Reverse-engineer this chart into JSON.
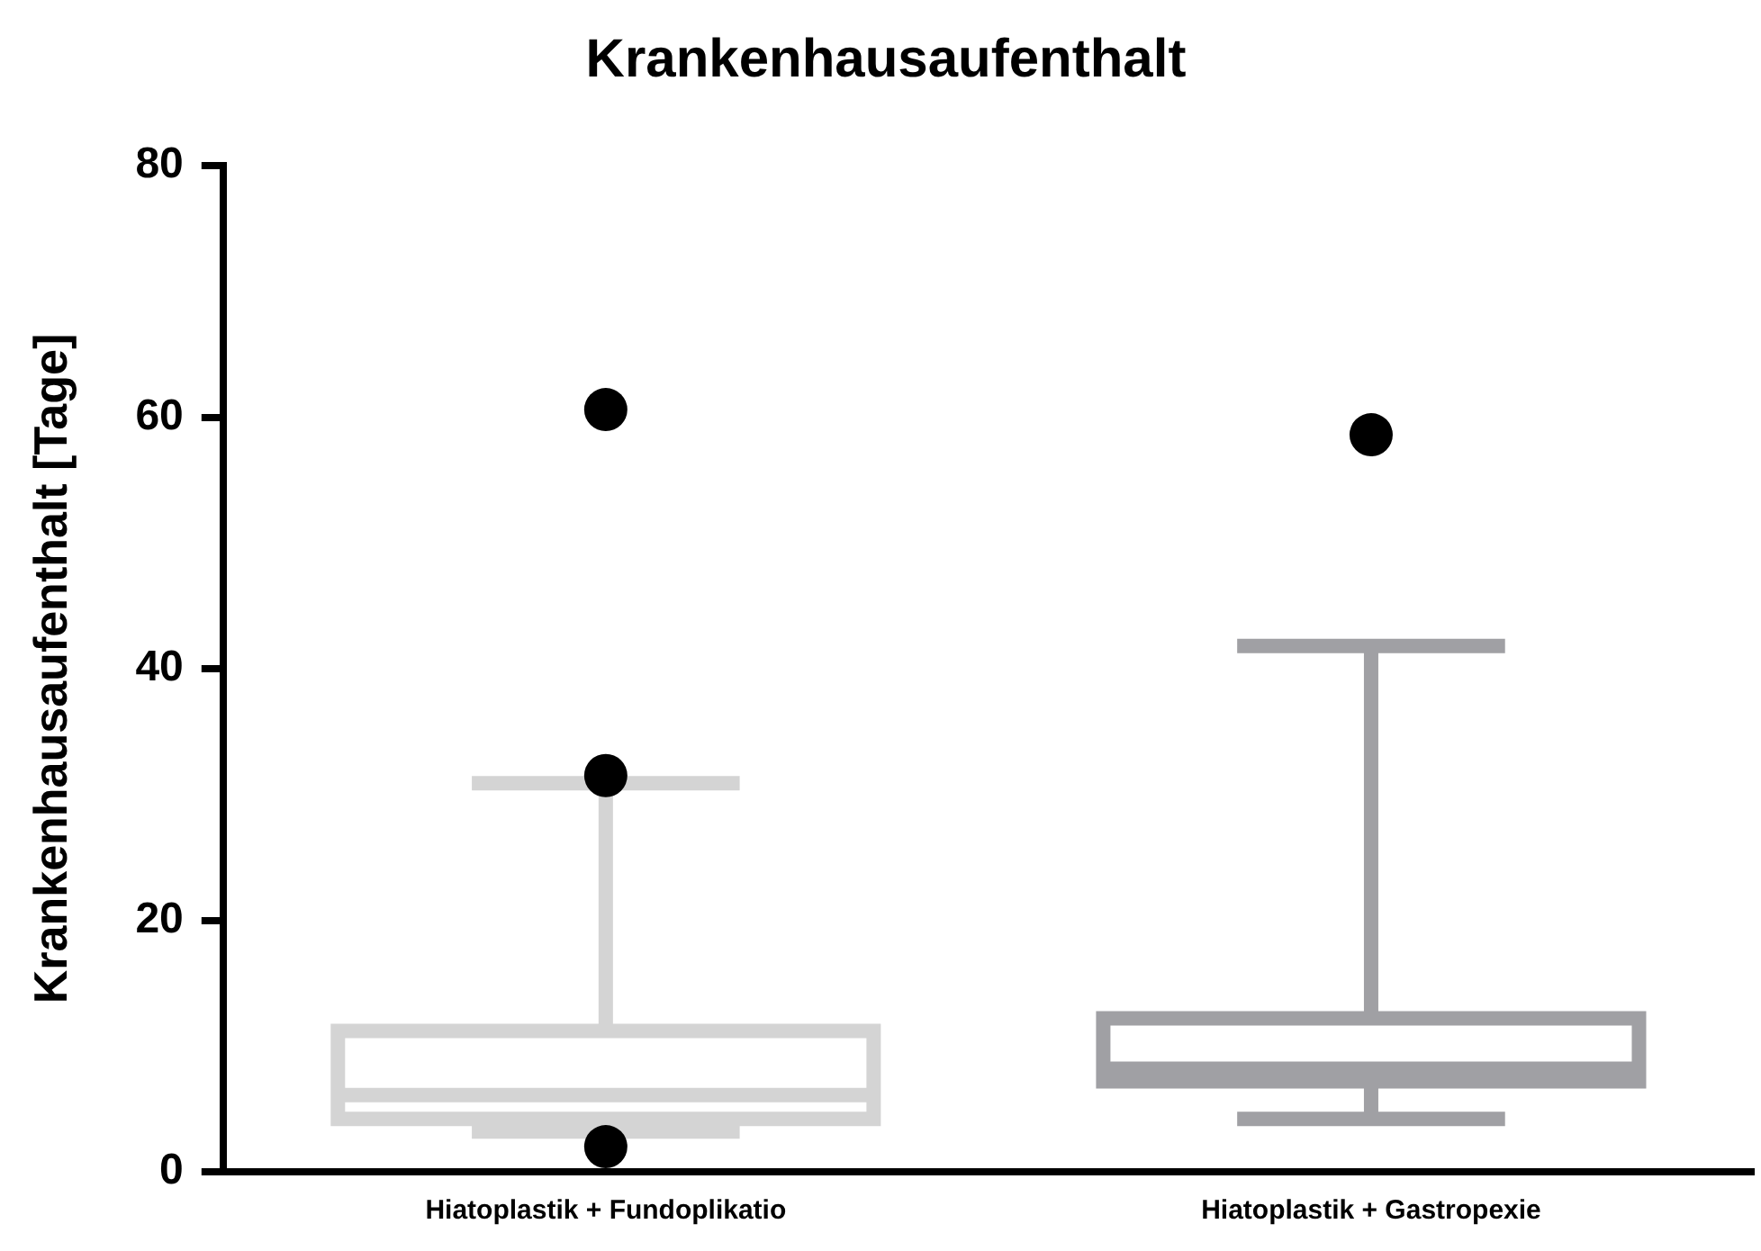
{
  "chart_data": {
    "type": "box",
    "title": "Krankenhausaufenthalt",
    "ylabel": "Krankenhausaufenthalt [Tage]",
    "categories": [
      "Hiatoplastik + Fundoplikatio",
      "Hiatoplastik + Gastropexie"
    ],
    "colors": [
      "#d4d4d4",
      "#a0a0a4"
    ],
    "boxes": [
      {
        "low": 3.2,
        "q1": 4.2,
        "median": 6.1,
        "q3": 11.2,
        "high": 30.9,
        "outliers": [
          60.6,
          31.5,
          2.0
        ]
      },
      {
        "low": 4.2,
        "q1": 7.2,
        "median": 8.2,
        "q3": 12.2,
        "high": 41.8,
        "outliers": [
          58.6
        ]
      }
    ],
    "ylim": [
      0,
      80
    ],
    "yticks": [
      0,
      20,
      40,
      60,
      80
    ],
    "grid": false,
    "legend": false
  }
}
